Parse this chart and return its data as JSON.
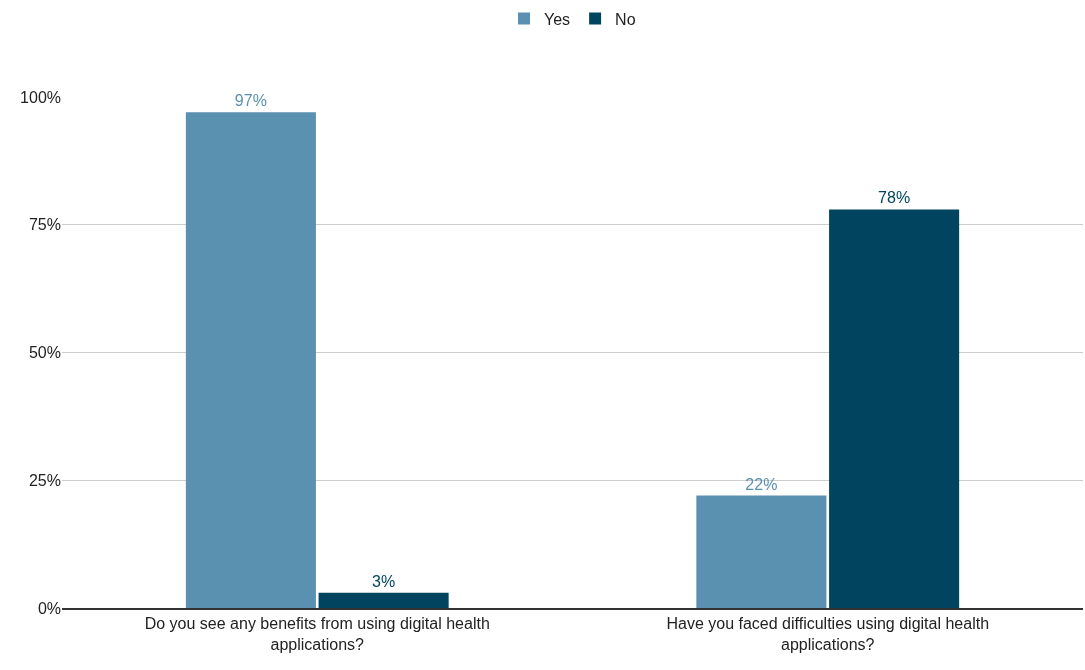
{
  "chart_data": {
    "type": "bar",
    "categories": [
      "Do you see any benefits from using digital health applications?",
      "Have you faced difficulties using digital health applications?"
    ],
    "series": [
      {
        "name": "Yes",
        "color": "#5a91b0",
        "values": [
          97,
          22
        ],
        "value_labels": [
          "97%",
          "22%"
        ]
      },
      {
        "name": "No",
        "color": "#00445f",
        "values": [
          3,
          78
        ],
        "value_labels": [
          "3%",
          "78%"
        ]
      }
    ],
    "ylim": [
      0,
      100
    ],
    "yticks": [
      {
        "value": 0,
        "label": "0%"
      },
      {
        "value": 25,
        "label": "25%"
      },
      {
        "value": 50,
        "label": "50%"
      },
      {
        "value": 75,
        "label": "75%"
      },
      {
        "value": 100,
        "label": "100%"
      }
    ],
    "grid": "y",
    "legend": "top"
  }
}
